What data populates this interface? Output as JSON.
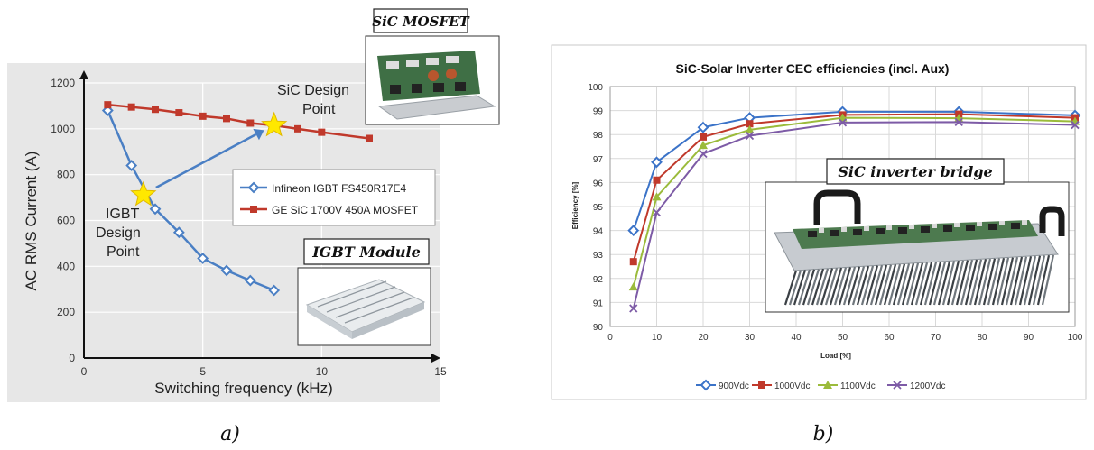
{
  "panel_labels": {
    "a": "a)",
    "b": "b)"
  },
  "photos": {
    "sic_mosfet": "SiC MOSFET",
    "igbt_module": "IGBT Module",
    "sic_inverter_bridge": "SiC inverter bridge"
  },
  "annotations": {
    "sic_design_point": [
      "SiC Design",
      "Point"
    ],
    "igbt_design_point": [
      "IGBT",
      "Design",
      "Point"
    ]
  },
  "colors": {
    "infineon": "#4a7fc4",
    "ge_sic": "#c0392b",
    "v900": "#3b73c8",
    "v1000": "#c0392b",
    "v1100": "#9bbb3b",
    "v1200": "#7d5ba6",
    "star": "#ffe800",
    "arrow": "#4a7fc4"
  },
  "chart_data": [
    {
      "type": "line",
      "xlabel": "Switching frequency (kHz)",
      "ylabel": "AC RMS Current (A)",
      "xlim": [
        0,
        15
      ],
      "ylim": [
        0,
        1200
      ],
      "xticks": [
        "0",
        "5",
        "10",
        "15"
      ],
      "yticks": [
        "0",
        "200",
        "400",
        "600",
        "800",
        "1000",
        "1200"
      ],
      "grid": true,
      "legend_position": "center-right",
      "series": [
        {
          "name": "Infineon IGBT FS450R17E4",
          "marker": "diamond",
          "x": [
            1,
            2,
            3,
            4,
            5,
            6,
            7,
            8
          ],
          "y": [
            1080,
            840,
            650,
            548,
            435,
            382,
            338,
            295
          ]
        },
        {
          "name": "GE SiC 1700V 450A MOSFET",
          "marker": "square",
          "x": [
            1,
            2,
            3,
            4,
            5,
            6,
            7,
            8,
            9,
            10,
            12
          ],
          "y": [
            1105,
            1095,
            1085,
            1070,
            1055,
            1045,
            1025,
            1015,
            1000,
            985,
            958
          ]
        }
      ],
      "design_points": [
        {
          "x": 2.5,
          "y": 712
        },
        {
          "x": 8,
          "y": 1015
        }
      ]
    },
    {
      "type": "line",
      "title": "SiC-Solar Inverter CEC efficiencies (incl. Aux)",
      "xlabel": "Load [%]",
      "ylabel": "Efficiency [%]",
      "xlim": [
        0,
        100
      ],
      "ylim": [
        90,
        100
      ],
      "xticks": [
        "0",
        "10",
        "20",
        "30",
        "40",
        "50",
        "60",
        "70",
        "80",
        "90",
        "100"
      ],
      "yticks": [
        "90",
        "91",
        "92",
        "93",
        "94",
        "95",
        "96",
        "97",
        "98",
        "99",
        "100"
      ],
      "grid": true,
      "legend_position": "bottom",
      "x": [
        5,
        10,
        20,
        30,
        50,
        75,
        100
      ],
      "series": [
        {
          "name": "900Vdc",
          "marker": "diamond",
          "values": [
            94.0,
            96.85,
            98.3,
            98.7,
            98.95,
            98.95,
            98.8
          ]
        },
        {
          "name": "1000Vdc",
          "marker": "square",
          "values": [
            92.7,
            96.1,
            97.9,
            98.45,
            98.82,
            98.85,
            98.7
          ]
        },
        {
          "name": "1100Vdc",
          "marker": "triangle",
          "values": [
            91.65,
            95.4,
            97.55,
            98.2,
            98.7,
            98.68,
            98.55
          ]
        },
        {
          "name": "1200Vdc",
          "marker": "x",
          "values": [
            90.75,
            94.75,
            97.2,
            97.95,
            98.5,
            98.52,
            98.4
          ]
        }
      ]
    }
  ]
}
